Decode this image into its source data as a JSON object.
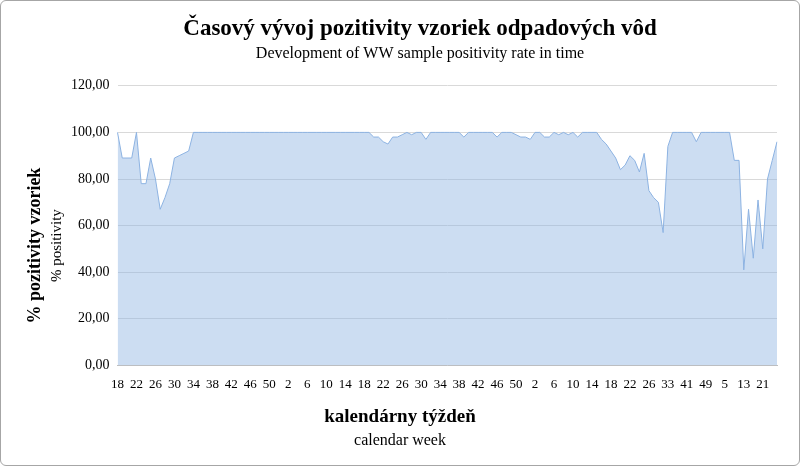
{
  "chart_data": {
    "type": "area",
    "title": "Časový vývoj pozitivity vzoriek odpadových vôd",
    "subtitle": "Development of WW sample positivity rate in time",
    "xlabel": [
      "kalendárny týždeň",
      "calendar week"
    ],
    "ylabel": [
      "% pozitivity vzoriek",
      "% positivity"
    ],
    "categories": [
      "18",
      null,
      null,
      null,
      "22",
      null,
      null,
      null,
      "26",
      null,
      null,
      null,
      "30",
      null,
      null,
      null,
      "34",
      null,
      null,
      null,
      "38",
      null,
      null,
      null,
      "42",
      null,
      null,
      null,
      "46",
      null,
      null,
      null,
      "50",
      null,
      null,
      null,
      "2",
      null,
      null,
      null,
      "6",
      null,
      null,
      null,
      "10",
      null,
      null,
      null,
      "14",
      null,
      null,
      null,
      "18",
      null,
      null,
      null,
      "22",
      null,
      null,
      null,
      "26",
      null,
      null,
      null,
      "30",
      null,
      null,
      null,
      "34",
      null,
      null,
      null,
      "38",
      null,
      null,
      null,
      "42",
      null,
      null,
      null,
      "46",
      null,
      null,
      null,
      "50",
      null,
      null,
      null,
      "2",
      null,
      null,
      null,
      "6",
      null,
      null,
      null,
      "10",
      null,
      null,
      null,
      "14",
      null,
      null,
      null,
      "18",
      null,
      null,
      null,
      "22",
      null,
      null,
      null,
      "26",
      null,
      null,
      null,
      "33",
      null,
      null,
      null,
      "41",
      null,
      null,
      null,
      "49",
      null,
      null,
      null,
      "5",
      null,
      null,
      null,
      "13",
      null,
      null,
      null,
      "21",
      null,
      null,
      null
    ],
    "values": [
      100,
      89,
      89,
      89,
      100,
      78,
      78,
      89,
      80,
      67,
      72,
      78,
      89,
      90,
      91,
      92,
      100,
      100,
      100,
      100,
      100,
      100,
      100,
      100,
      100,
      100,
      100,
      100,
      100,
      100,
      100,
      100,
      100,
      100,
      100,
      100,
      100,
      100,
      100,
      100,
      100,
      100,
      100,
      100,
      100,
      100,
      100,
      100,
      100,
      100,
      100,
      100,
      100,
      100,
      98,
      98,
      96,
      95,
      98,
      98,
      99,
      100,
      99,
      100,
      100,
      97,
      100,
      100,
      100,
      100,
      100,
      100,
      100,
      98,
      100,
      100,
      100,
      100,
      100,
      100,
      98,
      100,
      100,
      100,
      99,
      98,
      98,
      97,
      100,
      100,
      98,
      98,
      100,
      99,
      100,
      99,
      100,
      98,
      100,
      100,
      100,
      100,
      97,
      95,
      92,
      89,
      84,
      86,
      90,
      88,
      83,
      91,
      75,
      72,
      70,
      57,
      94,
      100,
      100,
      100,
      100,
      100,
      96,
      100,
      100,
      100,
      100,
      100,
      100,
      100,
      88,
      88,
      41,
      67,
      46,
      71,
      50,
      80,
      88,
      96
    ],
    "color": "#8db3e2",
    "ylim": [
      0,
      120
    ],
    "yticks": [
      {
        "value": 0,
        "label": "0,00"
      },
      {
        "value": 20,
        "label": "20,00"
      },
      {
        "value": 40,
        "label": "40,00"
      },
      {
        "value": 60,
        "label": "60,00"
      },
      {
        "value": 80,
        "label": "80,00"
      },
      {
        "value": 100,
        "label": "100,00"
      },
      {
        "value": 120,
        "label": "120,00"
      }
    ],
    "grid": true
  }
}
